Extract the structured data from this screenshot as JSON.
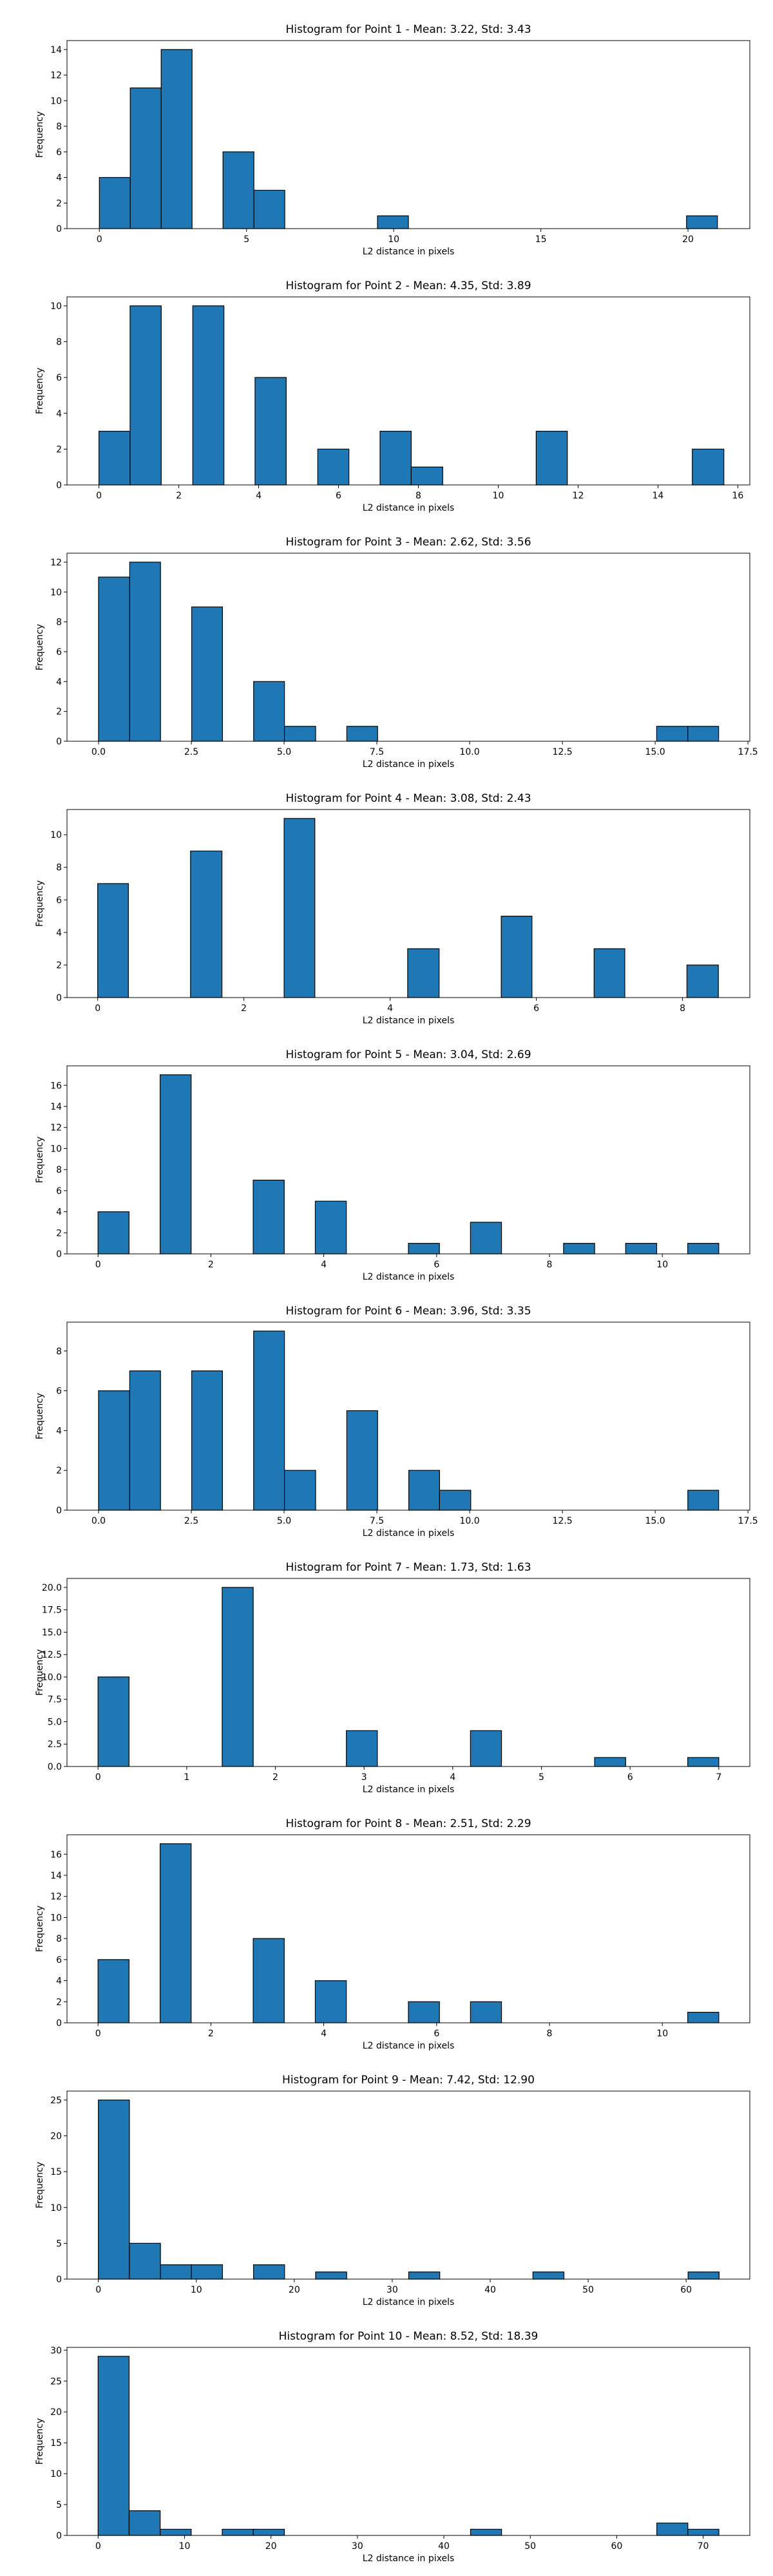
{
  "chart_data": [
    {
      "type": "bar",
      "title": "Histogram for Point 1 - Mean: 3.22, Std: 3.43",
      "xlabel": "L2 distance in pixels",
      "ylabel": "Frequency",
      "xlim": [
        -1.1,
        22.1
      ],
      "ylim": [
        0,
        14.7
      ],
      "xticks": [
        0,
        5,
        10,
        15,
        20
      ],
      "xtick_labels": [
        "0",
        "5",
        "10",
        "15",
        "20"
      ],
      "yticks": [
        0,
        2,
        4,
        6,
        8,
        10,
        12,
        14
      ],
      "ytick_labels": [
        "0",
        "2",
        "4",
        "6",
        "8",
        "10",
        "12",
        "14"
      ],
      "bins": [
        [
          0,
          1.05,
          4
        ],
        [
          1.05,
          2.1,
          11
        ],
        [
          2.1,
          3.15,
          14
        ],
        [
          4.2,
          5.25,
          6
        ],
        [
          5.25,
          6.3,
          3
        ],
        [
          9.45,
          10.5,
          1
        ],
        [
          19.95,
          21,
          1
        ]
      ],
      "bar_color": "#1f77b4",
      "edge_color": "#000000",
      "grid": false
    },
    {
      "type": "bar",
      "title": "Histogram for Point 2 - Mean: 4.35, Std: 3.89",
      "xlabel": "L2 distance in pixels",
      "ylabel": "Frequency",
      "xlim": [
        -0.8,
        16.3
      ],
      "ylim": [
        0,
        10.5
      ],
      "xticks": [
        0,
        2,
        4,
        6,
        8,
        10,
        12,
        14,
        16
      ],
      "xtick_labels": [
        "0",
        "2",
        "4",
        "6",
        "8",
        "10",
        "12",
        "14",
        "16"
      ],
      "yticks": [
        0,
        2,
        4,
        6,
        8,
        10
      ],
      "ytick_labels": [
        "0",
        "2",
        "4",
        "6",
        "8",
        "10"
      ],
      "bins": [
        [
          0,
          0.78,
          3
        ],
        [
          0.78,
          1.56,
          10
        ],
        [
          2.35,
          3.13,
          10
        ],
        [
          3.91,
          4.69,
          6
        ],
        [
          5.48,
          6.26,
          2
        ],
        [
          7.04,
          7.82,
          3
        ],
        [
          7.82,
          8.61,
          1
        ],
        [
          10.95,
          11.73,
          3
        ],
        [
          14.86,
          15.65,
          2
        ]
      ],
      "bar_color": "#1f77b4",
      "edge_color": "#000000",
      "grid": false
    },
    {
      "type": "bar",
      "title": "Histogram for Point 3 - Mean: 2.62, Std: 3.56",
      "xlabel": "L2 distance in pixels",
      "ylabel": "Frequency",
      "xlim": [
        -0.85,
        17.55
      ],
      "ylim": [
        0,
        12.6
      ],
      "xticks": [
        0,
        2.5,
        5,
        7.5,
        10,
        12.5,
        15,
        17.5
      ],
      "xtick_labels": [
        "0.0",
        "2.5",
        "5.0",
        "7.5",
        "10.0",
        "12.5",
        "15.0",
        "17.5"
      ],
      "yticks": [
        0,
        2,
        4,
        6,
        8,
        10,
        12
      ],
      "ytick_labels": [
        "0",
        "2",
        "4",
        "6",
        "8",
        "10",
        "12"
      ],
      "bins": [
        [
          0,
          0.84,
          11
        ],
        [
          0.84,
          1.67,
          12
        ],
        [
          2.51,
          3.34,
          9
        ],
        [
          4.18,
          5.01,
          4
        ],
        [
          5.01,
          5.85,
          1
        ],
        [
          6.69,
          7.52,
          1
        ],
        [
          15.04,
          15.88,
          1
        ],
        [
          15.88,
          16.71,
          1
        ]
      ],
      "bar_color": "#1f77b4",
      "edge_color": "#000000",
      "grid": false
    },
    {
      "type": "bar",
      "title": "Histogram for Point 4 - Mean: 3.08, Std: 2.43",
      "xlabel": "L2 distance in pixels",
      "ylabel": "Frequency",
      "xlim": [
        -0.42,
        8.92
      ],
      "ylim": [
        0,
        11.55
      ],
      "xticks": [
        0,
        2,
        4,
        6,
        8
      ],
      "xtick_labels": [
        "0",
        "2",
        "4",
        "6",
        "8"
      ],
      "yticks": [
        0,
        2,
        4,
        6,
        8,
        10
      ],
      "ytick_labels": [
        "0",
        "2",
        "4",
        "6",
        "8",
        "10"
      ],
      "bins": [
        [
          0,
          0.42,
          7
        ],
        [
          1.27,
          1.7,
          9
        ],
        [
          2.55,
          2.97,
          11
        ],
        [
          4.24,
          4.67,
          3
        ],
        [
          5.52,
          5.94,
          5
        ],
        [
          6.79,
          7.21,
          3
        ],
        [
          8.06,
          8.49,
          2
        ]
      ],
      "bar_color": "#1f77b4",
      "edge_color": "#000000",
      "grid": false
    },
    {
      "type": "bar",
      "title": "Histogram for Point 5 - Mean: 3.04, Std: 2.69",
      "xlabel": "L2 distance in pixels",
      "ylabel": "Frequency",
      "xlim": [
        -0.55,
        11.55
      ],
      "ylim": [
        0,
        17.85
      ],
      "xticks": [
        0,
        2,
        4,
        6,
        8,
        10
      ],
      "xtick_labels": [
        "0",
        "2",
        "4",
        "6",
        "8",
        "10"
      ],
      "yticks": [
        0,
        2,
        4,
        6,
        8,
        10,
        12,
        14,
        16
      ],
      "ytick_labels": [
        "0",
        "2",
        "4",
        "6",
        "8",
        "10",
        "12",
        "14",
        "16"
      ],
      "bins": [
        [
          0,
          0.55,
          4
        ],
        [
          1.1,
          1.65,
          17
        ],
        [
          2.75,
          3.3,
          7
        ],
        [
          3.85,
          4.4,
          5
        ],
        [
          5.5,
          6.05,
          1
        ],
        [
          6.6,
          7.15,
          3
        ],
        [
          8.25,
          8.8,
          1
        ],
        [
          9.35,
          9.9,
          1
        ],
        [
          10.45,
          11,
          1
        ]
      ],
      "bar_color": "#1f77b4",
      "edge_color": "#000000",
      "grid": false
    },
    {
      "type": "bar",
      "title": "Histogram for Point 6 - Mean: 3.96, Std: 3.35",
      "xlabel": "L2 distance in pixels",
      "ylabel": "Frequency",
      "xlim": [
        -0.85,
        17.55
      ],
      "ylim": [
        0,
        9.45
      ],
      "xticks": [
        0,
        2.5,
        5,
        7.5,
        10,
        12.5,
        15,
        17.5
      ],
      "xtick_labels": [
        "0.0",
        "2.5",
        "5.0",
        "7.5",
        "10.0",
        "12.5",
        "15.0",
        "17.5"
      ],
      "yticks": [
        0,
        2,
        4,
        6,
        8
      ],
      "ytick_labels": [
        "0",
        "2",
        "4",
        "6",
        "8"
      ],
      "bins": [
        [
          0,
          0.84,
          6
        ],
        [
          0.84,
          1.67,
          7
        ],
        [
          2.51,
          3.34,
          7
        ],
        [
          4.18,
          5.01,
          9
        ],
        [
          5.01,
          5.85,
          2
        ],
        [
          6.69,
          7.52,
          5
        ],
        [
          8.36,
          9.19,
          2
        ],
        [
          9.19,
          10.03,
          1
        ],
        [
          15.88,
          16.71,
          1
        ]
      ],
      "bar_color": "#1f77b4",
      "edge_color": "#000000",
      "grid": false
    },
    {
      "type": "bar",
      "title": "Histogram for Point 7 - Mean: 1.73, Std: 1.63",
      "xlabel": "L2 distance in pixels",
      "ylabel": "Frequency",
      "xlim": [
        -0.35,
        7.35
      ],
      "ylim": [
        0,
        21
      ],
      "xticks": [
        0,
        1,
        2,
        3,
        4,
        5,
        6,
        7
      ],
      "xtick_labels": [
        "0",
        "1",
        "2",
        "3",
        "4",
        "5",
        "6",
        "7"
      ],
      "yticks": [
        0,
        2.5,
        5,
        7.5,
        10,
        12.5,
        15,
        17.5,
        20
      ],
      "ytick_labels": [
        "0.0",
        "2.5",
        "5.0",
        "7.5",
        "10.0",
        "12.5",
        "15.0",
        "17.5",
        "20.0"
      ],
      "bins": [
        [
          0,
          0.35,
          10
        ],
        [
          1.4,
          1.75,
          20
        ],
        [
          2.8,
          3.15,
          4
        ],
        [
          4.2,
          4.55,
          4
        ],
        [
          5.6,
          5.95,
          1
        ],
        [
          6.65,
          7,
          1
        ]
      ],
      "bar_color": "#1f77b4",
      "edge_color": "#000000",
      "grid": false
    },
    {
      "type": "bar",
      "title": "Histogram for Point 8 - Mean: 2.51, Std: 2.29",
      "xlabel": "L2 distance in pixels",
      "ylabel": "Frequency",
      "xlim": [
        -0.55,
        11.55
      ],
      "ylim": [
        0,
        17.85
      ],
      "xticks": [
        0,
        2,
        4,
        6,
        8,
        10
      ],
      "xtick_labels": [
        "0",
        "2",
        "4",
        "6",
        "8",
        "10"
      ],
      "yticks": [
        0,
        2,
        4,
        6,
        8,
        10,
        12,
        14,
        16
      ],
      "ytick_labels": [
        "0",
        "2",
        "4",
        "6",
        "8",
        "10",
        "12",
        "14",
        "16"
      ],
      "bins": [
        [
          0,
          0.55,
          6
        ],
        [
          1.1,
          1.65,
          17
        ],
        [
          2.75,
          3.3,
          8
        ],
        [
          3.85,
          4.4,
          4
        ],
        [
          5.5,
          6.05,
          2
        ],
        [
          6.6,
          7.15,
          2
        ],
        [
          10.45,
          11,
          1
        ]
      ],
      "bar_color": "#1f77b4",
      "edge_color": "#000000",
      "grid": false
    },
    {
      "type": "bar",
      "title": "Histogram for Point 9 - Mean: 7.42, Std: 12.90",
      "xlabel": "L2 distance in pixels",
      "ylabel": "Frequency",
      "xlim": [
        -3.2,
        66.5
      ],
      "ylim": [
        0,
        26.25
      ],
      "xticks": [
        0,
        10,
        20,
        30,
        40,
        50,
        60
      ],
      "xtick_labels": [
        "0",
        "10",
        "20",
        "30",
        "40",
        "50",
        "60"
      ],
      "yticks": [
        0,
        5,
        10,
        15,
        20,
        25
      ],
      "ytick_labels": [
        "0",
        "5",
        "10",
        "15",
        "20",
        "25"
      ],
      "bins": [
        [
          0,
          3.17,
          25
        ],
        [
          3.17,
          6.34,
          5
        ],
        [
          6.34,
          9.5,
          2
        ],
        [
          9.5,
          12.67,
          2
        ],
        [
          15.84,
          19.01,
          2
        ],
        [
          22.18,
          25.35,
          1
        ],
        [
          31.68,
          34.85,
          1
        ],
        [
          44.36,
          47.53,
          1
        ],
        [
          60.2,
          63.37,
          1
        ]
      ],
      "bar_color": "#1f77b4",
      "edge_color": "#000000",
      "grid": false
    },
    {
      "type": "bar",
      "title": "Histogram for Point 10 - Mean: 8.52, Std: 18.39",
      "xlabel": "L2 distance in pixels",
      "ylabel": "Frequency",
      "xlim": [
        -3.6,
        75.4
      ],
      "ylim": [
        0,
        30.45
      ],
      "xticks": [
        0,
        10,
        20,
        30,
        40,
        50,
        60,
        70
      ],
      "xtick_labels": [
        "0",
        "10",
        "20",
        "30",
        "40",
        "50",
        "60",
        "70"
      ],
      "yticks": [
        0,
        5,
        10,
        15,
        20,
        25,
        30
      ],
      "ytick_labels": [
        "0",
        "5",
        "10",
        "15",
        "20",
        "25",
        "30"
      ],
      "bins": [
        [
          0,
          3.59,
          29
        ],
        [
          3.59,
          7.18,
          4
        ],
        [
          7.18,
          10.77,
          1
        ],
        [
          14.36,
          17.95,
          1
        ],
        [
          17.95,
          21.55,
          1
        ],
        [
          43.09,
          46.68,
          1
        ],
        [
          64.64,
          68.23,
          2
        ],
        [
          68.23,
          71.82,
          1
        ]
      ],
      "bar_color": "#1f77b4",
      "edge_color": "#000000",
      "grid": false
    }
  ]
}
